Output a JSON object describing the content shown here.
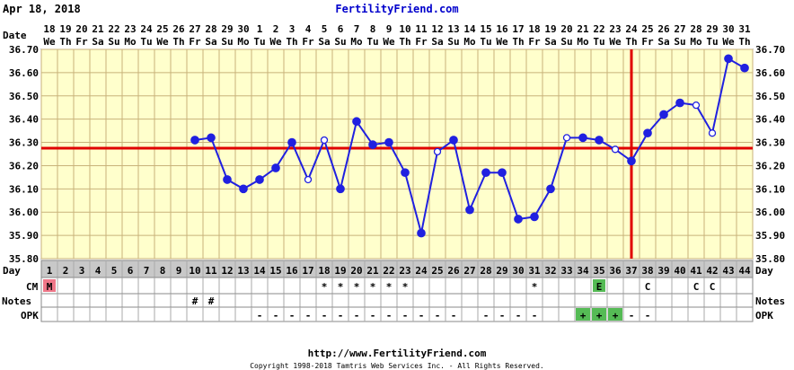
{
  "header": {
    "date": "Apr 18, 2018",
    "site": "FertilityFriend.com"
  },
  "footer": {
    "url": "http://www.FertilityFriend.com",
    "copyright": "Copyright 1998-2018 Tamtris Web Services Inc. - All Rights Reserved."
  },
  "row_labels": {
    "date": "Date",
    "day": "Day",
    "cm": "CM",
    "notes": "Notes",
    "opk": "OPK"
  },
  "colors": {
    "chart_bg": "#ffffcc",
    "grid": "#c8b27a",
    "line": "#2020e0",
    "coverline": "#e00000",
    "ovulation_line": "#e00000",
    "day_row": "#c8c8c8",
    "cm_m": "#ee7788",
    "cm_e": "#55bb55",
    "opk_pos": "#55bb55"
  },
  "chart_data": {
    "type": "line",
    "title": "",
    "dates": [
      "18",
      "19",
      "20",
      "21",
      "22",
      "23",
      "24",
      "25",
      "26",
      "27",
      "28",
      "29",
      "30",
      "1",
      "2",
      "3",
      "4",
      "5",
      "6",
      "7",
      "8",
      "9",
      "10",
      "11",
      "12",
      "13",
      "14",
      "15",
      "16",
      "17",
      "18",
      "19",
      "20",
      "21",
      "22",
      "23",
      "24",
      "25",
      "26",
      "27",
      "28",
      "29",
      "30",
      "31"
    ],
    "weekdays": [
      "We",
      "Th",
      "Fr",
      "Sa",
      "Su",
      "Mo",
      "Tu",
      "We",
      "Th",
      "Fr",
      "Sa",
      "Su",
      "Mo",
      "Tu",
      "We",
      "Th",
      "Fr",
      "Sa",
      "Su",
      "Mo",
      "Tu",
      "We",
      "Th",
      "Fr",
      "Sa",
      "Su",
      "Mo",
      "Tu",
      "We",
      "Th",
      "Fr",
      "Sa",
      "Su",
      "Mo",
      "Tu",
      "We",
      "Th",
      "Fr",
      "Sa",
      "Su",
      "Mo",
      "Tu",
      "We",
      "Th"
    ],
    "cycle_days": [
      1,
      2,
      3,
      4,
      5,
      6,
      7,
      8,
      9,
      10,
      11,
      12,
      13,
      14,
      15,
      16,
      17,
      18,
      19,
      20,
      21,
      22,
      23,
      24,
      25,
      26,
      27,
      28,
      29,
      30,
      31,
      32,
      33,
      34,
      35,
      36,
      37,
      38,
      39,
      40,
      41,
      42,
      43,
      44
    ],
    "temperatures": [
      null,
      null,
      null,
      null,
      null,
      null,
      null,
      null,
      null,
      36.31,
      36.32,
      36.14,
      36.1,
      36.14,
      36.19,
      36.3,
      36.14,
      36.31,
      36.1,
      36.39,
      36.29,
      36.3,
      36.17,
      35.91,
      36.26,
      36.31,
      36.01,
      36.17,
      36.17,
      35.97,
      35.98,
      36.1,
      36.32,
      36.32,
      36.31,
      36.27,
      36.22,
      36.34,
      36.42,
      36.47,
      36.46,
      36.34,
      36.66,
      36.62
    ],
    "open_points": [
      17,
      18,
      25,
      33,
      36,
      41,
      42
    ],
    "ylim": [
      35.8,
      36.7
    ],
    "yticks": [
      "36.70",
      "36.60",
      "36.50",
      "36.40",
      "36.30",
      "36.20",
      "36.10",
      "36.00",
      "35.90",
      "35.80"
    ],
    "coverline": 36.275,
    "ovulation_day": 37,
    "cm": {
      "1": "M",
      "18": "*",
      "19": "*",
      "20": "*",
      "21": "*",
      "22": "*",
      "23": "*",
      "31": "*",
      "35": "E",
      "38": "C",
      "41": "C",
      "42": "C"
    },
    "notes": {
      "10": "#",
      "11": "#"
    },
    "opk": {
      "14": "-",
      "15": "-",
      "16": "-",
      "17": "-",
      "18": "-",
      "19": "-",
      "20": "-",
      "21": "-",
      "22": "-",
      "23": "-",
      "24": "-",
      "25": "-",
      "26": "-",
      "28": "-",
      "29": "-",
      "30": "-",
      "31": "-",
      "34": "+",
      "35": "+",
      "36": "+",
      "37": "-",
      "38": "-"
    },
    "grid": true
  }
}
